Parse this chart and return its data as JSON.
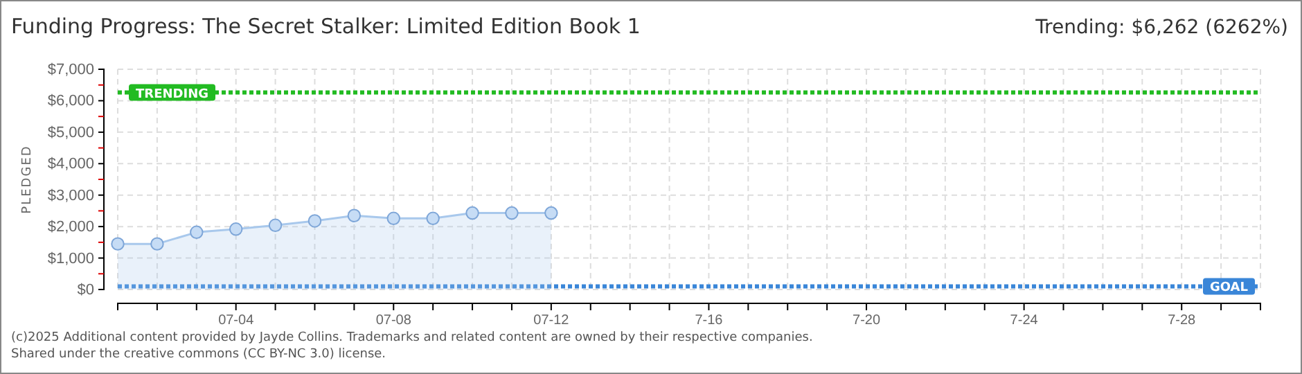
{
  "chart_data": {
    "type": "area",
    "title": "Funding Progress: The Secret Stalker: Limited Edition Book 1",
    "subtitle": "Trending:  $6,262 (6262%)",
    "ylabel": "PLEDGED",
    "categories": [
      null,
      null,
      null,
      "07-04",
      null,
      null,
      null,
      "07-08",
      null,
      null,
      null,
      "07-12",
      null,
      null,
      null,
      "7-16",
      null,
      null,
      null,
      "7-20",
      null,
      null,
      null,
      "7-24",
      null,
      null,
      null,
      "7-28",
      null,
      null
    ],
    "series": [
      {
        "color": "#a8c8ec",
        "values": [
          1450,
          1450,
          1820,
          1920,
          2040,
          2180,
          2350,
          2260,
          2260,
          2430,
          2430,
          2430,
          null,
          null,
          null,
          null,
          null,
          null,
          null,
          null,
          null,
          null,
          null,
          null,
          null,
          null,
          null,
          null,
          null,
          null
        ]
      }
    ],
    "marker": "circle",
    "grid": true,
    "ylim": [
      0,
      7000
    ],
    "yticks": [
      {
        "value": 0,
        "label": "$0"
      },
      {
        "value": 500,
        "label": null
      },
      {
        "value": 1000,
        "label": "$1,000"
      },
      {
        "value": 1500,
        "label": null
      },
      {
        "value": 2000,
        "label": "$2,000"
      },
      {
        "value": 2500,
        "label": null
      },
      {
        "value": 3000,
        "label": "$3,000"
      },
      {
        "value": 3500,
        "label": null
      },
      {
        "value": 4000,
        "label": "$4,000"
      },
      {
        "value": 4500,
        "label": null
      },
      {
        "value": 5000,
        "label": "$5,000"
      },
      {
        "value": 5500,
        "label": null
      },
      {
        "value": 6000,
        "label": "$6,000"
      },
      {
        "value": 6500,
        "label": null
      },
      {
        "value": 7000,
        "label": "$7,000"
      }
    ],
    "ref_lines": [
      {
        "axis": "y",
        "value": 6262,
        "label": "TRENDING",
        "color": "#22bb22",
        "line_style": "dotted"
      },
      {
        "axis": "y",
        "value": 100,
        "label": "GOAL",
        "color": "#3a86d8",
        "line_style": "dotted"
      }
    ],
    "annotations": [
      "(c)2025 Additional content provided by Jayde Collins. Trademarks and related content are owned by their respective companies.",
      "Shared under the creative commons (CC BY-NC 3.0) license."
    ]
  }
}
